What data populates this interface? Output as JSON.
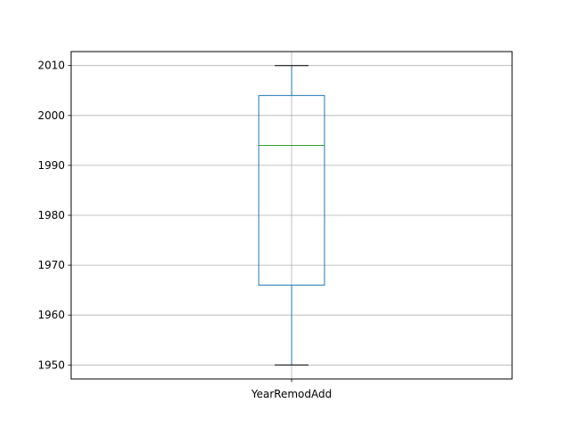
{
  "chart_data": {
    "type": "box",
    "categories": [
      "YearRemodAdd"
    ],
    "series": [
      {
        "whisker_low": 1950,
        "q1": 1966,
        "median": 1994,
        "q3": 2004,
        "whisker_high": 2010
      }
    ],
    "yticks": [
      1950,
      1960,
      1970,
      1980,
      1990,
      2000,
      2010
    ],
    "ylim": [
      1947.2,
      2012.8
    ],
    "grid": true,
    "colors": {
      "box": "#1f77b4",
      "median": "#2ca02c",
      "cap": "#000000",
      "grid": "#b0b0b0",
      "frame": "#000000"
    }
  }
}
